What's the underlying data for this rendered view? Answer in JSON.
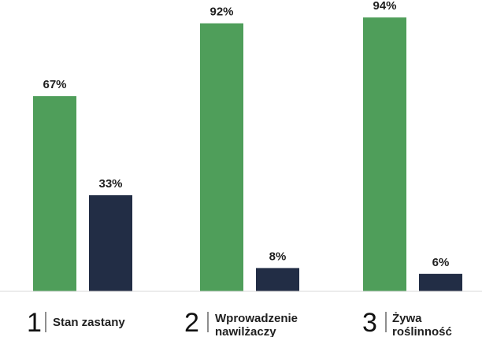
{
  "chart_data": {
    "type": "bar",
    "categories": [
      {
        "number": "1",
        "label_lines": [
          "Stan zastany"
        ]
      },
      {
        "number": "2",
        "label_lines": [
          "Wprowadzenie",
          "nawilżaczy"
        ]
      },
      {
        "number": "3",
        "label_lines": [
          "Żywa",
          "roślinność"
        ]
      }
    ],
    "series": [
      {
        "color": "#4f9e5a",
        "values": [
          67,
          92,
          94
        ],
        "labels": [
          "67%",
          "92%",
          "94%"
        ]
      },
      {
        "color": "#222d45",
        "values": [
          33,
          8,
          6
        ],
        "labels": [
          "33%",
          "8%",
          "6%"
        ]
      }
    ],
    "ylim": [
      0,
      100
    ],
    "grid": false,
    "legend": "none",
    "axis_line_color": "#d9d9d9"
  }
}
